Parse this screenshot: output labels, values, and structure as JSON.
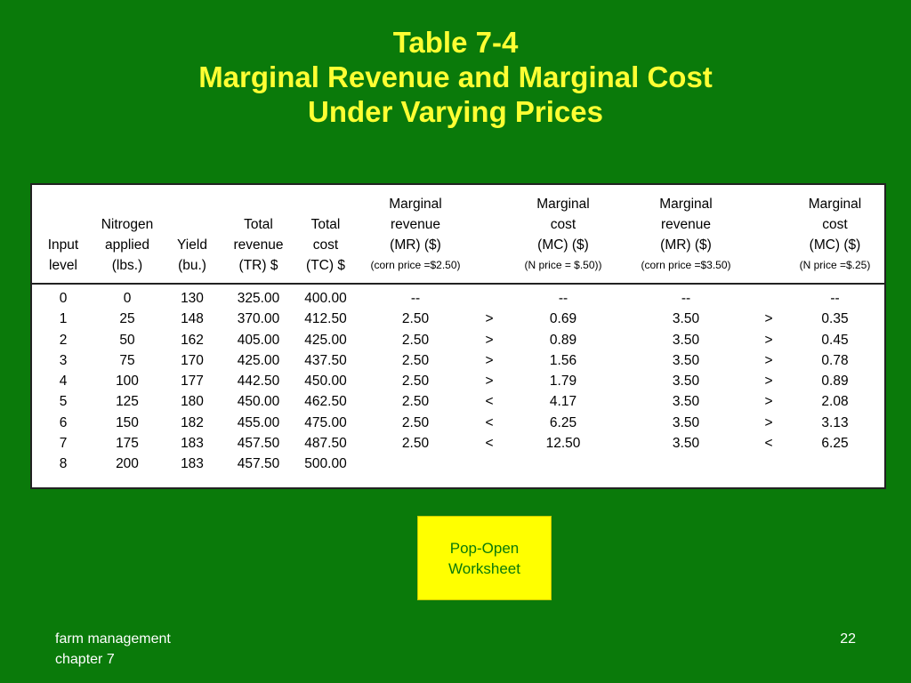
{
  "title": {
    "line1": "Table 7-4",
    "line2": "Marginal Revenue and Marginal Cost",
    "line3": "Under Varying Prices"
  },
  "table": {
    "headers": [
      {
        "lines": [
          "Input",
          "level"
        ],
        "small": ""
      },
      {
        "lines": [
          "Nitrogen",
          "applied",
          "(lbs.)"
        ],
        "small": ""
      },
      {
        "lines": [
          "Yield",
          "(bu.)"
        ],
        "small": ""
      },
      {
        "lines": [
          "Total",
          "revenue",
          "(TR) $"
        ],
        "small": ""
      },
      {
        "lines": [
          "Total",
          "cost",
          "(TC) $"
        ],
        "small": ""
      },
      {
        "lines": [
          "Marginal",
          "revenue",
          "(MR) ($)"
        ],
        "small": "(corn price =$2.50)"
      },
      {
        "lines": [],
        "small": ""
      },
      {
        "lines": [
          "Marginal",
          "cost",
          "(MC) ($)"
        ],
        "small": "(N price = $.50))"
      },
      {
        "lines": [
          "Marginal",
          "revenue",
          "(MR) ($)"
        ],
        "small": "(corn price =$3.50)"
      },
      {
        "lines": [],
        "small": ""
      },
      {
        "lines": [
          "Marginal",
          "cost",
          "(MC) ($)"
        ],
        "small": "(N price =$.25)"
      }
    ],
    "rows": [
      [
        "0",
        "0",
        "130",
        "325.00",
        "400.00",
        "--",
        "",
        "--",
        "--",
        "",
        "--"
      ],
      [
        "1",
        "25",
        "148",
        "370.00",
        "412.50",
        "2.50",
        ">",
        "0.69",
        "3.50",
        ">",
        "0.35"
      ],
      [
        "2",
        "50",
        "162",
        "405.00",
        "425.00",
        "2.50",
        ">",
        "0.89",
        "3.50",
        ">",
        "0.45"
      ],
      [
        "3",
        "75",
        "170",
        "425.00",
        "437.50",
        "2.50",
        ">",
        "1.56",
        "3.50",
        ">",
        "0.78"
      ],
      [
        "4",
        "100",
        "177",
        "442.50",
        "450.00",
        "2.50",
        ">",
        "1.79",
        "3.50",
        ">",
        "0.89"
      ],
      [
        "5",
        "125",
        "180",
        "450.00",
        "462.50",
        "2.50",
        "<",
        "4.17",
        "3.50",
        ">",
        "2.08"
      ],
      [
        "6",
        "150",
        "182",
        "455.00",
        "475.00",
        "2.50",
        "<",
        "6.25",
        "3.50",
        ">",
        "3.13"
      ],
      [
        "7",
        "175",
        "183",
        "457.50",
        "487.50",
        "2.50",
        "<",
        "12.50",
        "3.50",
        "<",
        "6.25"
      ],
      [
        "8",
        "200",
        "183",
        "457.50",
        "500.00",
        "",
        "",
        "",
        "",
        "",
        ""
      ]
    ]
  },
  "worksheet_button": {
    "line1": "Pop-Open",
    "line2": "Worksheet"
  },
  "footer": {
    "left_line1": "farm management",
    "left_line2": "chapter 7",
    "page_number": "22"
  },
  "colors": {
    "background": "#0a7a0a",
    "title": "#ffff33",
    "button_bg": "#ffff00"
  }
}
